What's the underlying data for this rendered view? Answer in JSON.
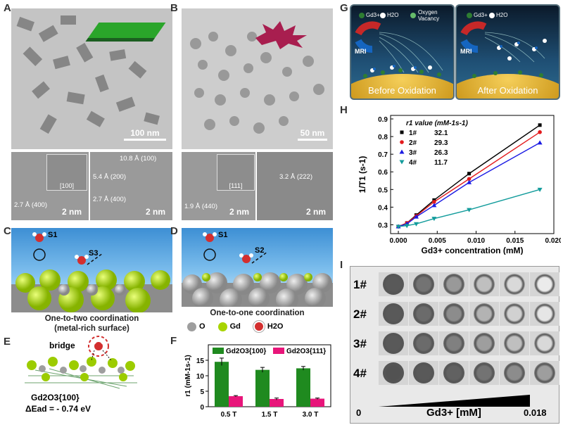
{
  "panels": {
    "A": "A",
    "B": "B",
    "C": "C",
    "D": "D",
    "E": "E",
    "F": "F",
    "G": "G",
    "H": "H",
    "I": "I"
  },
  "panelA": {
    "scale": "100 nm",
    "hr_left_scale": "2 nm",
    "hr_left_fft": "[100]",
    "hr_left_anno": "2.7 Å (400)",
    "hr_right_scale": "2 nm",
    "hr_right_annos": [
      "10.8 Å (100)",
      "5.4 Å (200)",
      "2.7 Å (400)"
    ]
  },
  "panelB": {
    "scale": "50 nm",
    "hr_left_scale": "2 nm",
    "hr_left_fft": "[111]",
    "hr_left_anno": "1.9 Å (440)",
    "hr_right_scale": "2 nm",
    "hr_right_anno": "3.2 Å (222)"
  },
  "panelC": {
    "s1": "S1",
    "s3": "S3",
    "caption1": "One-to-two coordination",
    "caption2": "(metal-rich surface)"
  },
  "panelD": {
    "s1": "S1",
    "s2": "S2",
    "caption": "One-to-one coordination"
  },
  "legend": {
    "o": "O",
    "gd": "Gd",
    "h2o": "H2O"
  },
  "panelE": {
    "bridge": "bridge",
    "formula": "Gd2O3{100}",
    "energy": "ΔEad = - 0.74 eV"
  },
  "panelG": {
    "left_title": "Before Oxidation",
    "right_title": "After Oxidation",
    "mri": "MRI",
    "legend_gd": "Gd3+",
    "legend_h2o": "H2O",
    "legend_ov": "Oxygen Vacancy"
  },
  "chart_data": [
    {
      "type": "bar",
      "panel": "F",
      "categories": [
        "0.5 T",
        "1.5 T",
        "3.0 T"
      ],
      "series": [
        {
          "name": "Gd2O3{100}",
          "values": [
            14.5,
            11.9,
            12.4
          ],
          "errors": [
            1.2,
            0.8,
            0.6
          ],
          "color": "#1f8a1f"
        },
        {
          "name": "Gd2O3{111}",
          "values": [
            3.4,
            2.5,
            2.6
          ],
          "errors": [
            0.2,
            0.3,
            0.2
          ],
          "color": "#e8157a"
        }
      ],
      "ylabel": "r1 (mM-1s-1)",
      "ylim": [
        0,
        20
      ],
      "yticks": [
        0,
        5,
        10,
        15
      ],
      "legend": "top"
    },
    {
      "type": "line",
      "panel": "H",
      "xlabel": "Gd3+ concentration (mM)",
      "ylabel": "1/T1 (s-1)",
      "xlim": [
        -0.001,
        0.02
      ],
      "ylim": [
        0.25,
        0.92
      ],
      "xticks": [
        0.0,
        0.005,
        0.01,
        0.015,
        0.02
      ],
      "xticklabels": [
        "0.000",
        "0.005",
        "0.010",
        "0.015",
        "0.020"
      ],
      "yticks": [
        0.3,
        0.4,
        0.5,
        0.6,
        0.7,
        0.8,
        0.9
      ],
      "legend_title": "r1 value (mM-1s-1)",
      "series": [
        {
          "name": "1#",
          "r1": "32.1",
          "color": "#000000",
          "marker": "square",
          "x": [
            0,
            0.0011,
            0.0023,
            0.0046,
            0.0091,
            0.0182
          ],
          "y": [
            0.29,
            0.31,
            0.355,
            0.44,
            0.59,
            0.865
          ]
        },
        {
          "name": "2#",
          "r1": "29.3",
          "color": "#e31a1c",
          "marker": "circle",
          "x": [
            0,
            0.0011,
            0.0023,
            0.0046,
            0.0091,
            0.0182
          ],
          "y": [
            0.29,
            0.31,
            0.35,
            0.43,
            0.56,
            0.825
          ]
        },
        {
          "name": "3#",
          "r1": "26.3",
          "color": "#1a1ae3",
          "marker": "triangle",
          "x": [
            0,
            0.0011,
            0.0023,
            0.0046,
            0.0091,
            0.0182
          ],
          "y": [
            0.29,
            0.305,
            0.345,
            0.41,
            0.54,
            0.765
          ]
        },
        {
          "name": "4#",
          "r1": "11.7",
          "color": "#139c9c",
          "marker": "tri-down",
          "x": [
            0,
            0.0011,
            0.0023,
            0.0046,
            0.0091,
            0.0182
          ],
          "y": [
            0.29,
            0.295,
            0.305,
            0.335,
            0.385,
            0.5
          ]
        }
      ]
    }
  ],
  "panelI": {
    "rows": [
      "1#",
      "2#",
      "3#",
      "4#"
    ],
    "xmin": "0",
    "xmax": "0.018",
    "xlabel": "Gd3+ [mM]",
    "brightness": [
      [
        0.35,
        0.45,
        0.6,
        0.75,
        0.85,
        0.92
      ],
      [
        0.35,
        0.42,
        0.55,
        0.7,
        0.82,
        0.9
      ],
      [
        0.35,
        0.42,
        0.5,
        0.62,
        0.75,
        0.85
      ],
      [
        0.32,
        0.35,
        0.38,
        0.45,
        0.55,
        0.62
      ]
    ]
  }
}
